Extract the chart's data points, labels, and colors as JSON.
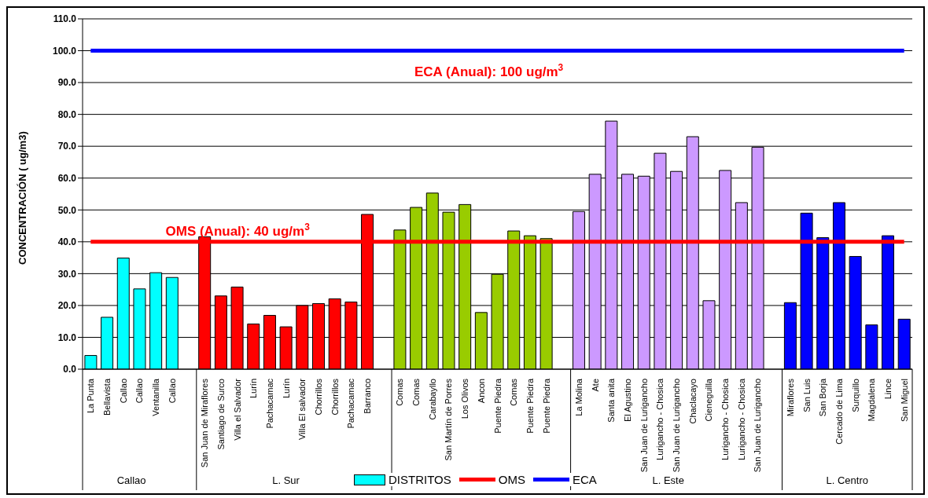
{
  "chart_data": {
    "type": "bar",
    "ylabel": "CONCENTRACIÓN ( ug/m3)",
    "categories": [
      "La Punta",
      "Bellavista",
      "Callao",
      "Callao",
      "Ventanilla",
      "Callao",
      null,
      "San Juan de Miraflores",
      "Santiago de Surco",
      "Villa el Salvador",
      "Lurín",
      "Pachacamac",
      "Lurín",
      "Villa El salvador",
      "Chorrillos",
      "Chorrillos",
      "Pachacamac",
      "Barranco",
      null,
      "Comas",
      "Comas",
      "Carabayllo",
      "San Martín de Porres",
      "Los Olivos",
      "Ancon",
      "Puente Piedra",
      "Comas",
      "Puente Piedra",
      "Puente Piedra",
      null,
      "La Molina",
      "Ate",
      "Santa anita",
      "El Agustino",
      "San Juan de Lurigancho",
      "Lurigancho - Chosica",
      "San Juan de Lurigancho",
      "Chaclacayo",
      "Cieneguilla",
      "Lurigancho - Chosica",
      "Lurigancho - Chosica",
      "San Juan de Lurigancho",
      null,
      "Miraflores",
      "San Luis",
      "San Borja",
      "Cercado de Lima",
      "Surquillo",
      "Magdalena",
      "Lince",
      "San Miguel"
    ],
    "series": [
      {
        "name": "DISTRITOS",
        "color": "#00ffff",
        "colors": [
          "#00ffff",
          "#00ffff",
          "#00ffff",
          "#00ffff",
          "#00ffff",
          "#00ffff",
          null,
          "#ff0000",
          "#ff0000",
          "#ff0000",
          "#ff0000",
          "#ff0000",
          "#ff0000",
          "#ff0000",
          "#ff0000",
          "#ff0000",
          "#ff0000",
          "#ff0000",
          null,
          "#99cc00",
          "#99cc00",
          "#99cc00",
          "#99cc00",
          "#99cc00",
          "#99cc00",
          "#99cc00",
          "#99cc00",
          "#99cc00",
          "#99cc00",
          null,
          "#cc99ff",
          "#cc99ff",
          "#cc99ff",
          "#cc99ff",
          "#cc99ff",
          "#cc99ff",
          "#cc99ff",
          "#cc99ff",
          "#cc99ff",
          "#cc99ff",
          "#cc99ff",
          "#cc99ff",
          null,
          "#0000ff",
          "#0000ff",
          "#0000ff",
          "#0000ff",
          "#0000ff",
          "#0000ff",
          "#0000ff",
          "#0000ff"
        ],
        "values": [
          4.3,
          16.3,
          34.9,
          25.2,
          30.3,
          28.8,
          null,
          41.6,
          23.0,
          25.8,
          14.2,
          16.9,
          13.3,
          20.0,
          20.6,
          22.1,
          21.1,
          48.6,
          null,
          43.7,
          50.8,
          55.3,
          49.3,
          51.7,
          17.8,
          29.8,
          43.4,
          41.9,
          41.0,
          null,
          49.5,
          61.2,
          77.9,
          61.2,
          60.6,
          67.8,
          62.1,
          73.0,
          21.5,
          62.4,
          52.3,
          69.7,
          null,
          20.9,
          49.0,
          41.3,
          52.3,
          35.4,
          13.9,
          41.9,
          15.7
        ]
      },
      {
        "name": "OMS",
        "type": "line",
        "color": "#ff0000",
        "values": [
          40,
          40,
          40,
          40,
          40,
          40,
          40,
          40,
          40,
          40,
          40,
          40,
          40,
          40,
          40,
          40,
          40,
          40,
          40,
          40,
          40,
          40,
          40,
          40,
          40,
          40,
          40,
          40,
          40,
          40,
          40,
          40,
          40,
          40,
          40,
          40,
          40,
          40,
          40,
          40,
          40,
          40,
          40,
          40,
          40,
          40,
          40,
          40,
          40,
          40,
          40
        ]
      },
      {
        "name": "ECA",
        "type": "line",
        "color": "#0000ff",
        "values": [
          100,
          100,
          100,
          100,
          100,
          100,
          100,
          100,
          100,
          100,
          100,
          100,
          100,
          100,
          100,
          100,
          100,
          100,
          100,
          100,
          100,
          100,
          100,
          100,
          100,
          100,
          100,
          100,
          100,
          100,
          100,
          100,
          100,
          100,
          100,
          100,
          100,
          100,
          100,
          100,
          100,
          100,
          100,
          100,
          100,
          100,
          100,
          100,
          100,
          100,
          100
        ]
      }
    ],
    "annotations": [
      "OMS (Anual): 40 ug/m$^{3}$",
      "ECA (Anual): 100 ug/m$^{3}$",
      "Callao",
      "L. Sur",
      "L. Este",
      "L. Centro"
    ],
    "ylim": [
      0,
      110
    ],
    "yticks": [
      {
        "value": 0,
        "label": "0.0"
      },
      {
        "value": 10,
        "label": "10.0"
      },
      {
        "value": 20,
        "label": "20.0"
      },
      {
        "value": 30,
        "label": "30.0"
      },
      {
        "value": 40,
        "label": "40.0"
      },
      {
        "value": 50,
        "label": "50.0"
      },
      {
        "value": 60,
        "label": "60.0"
      },
      {
        "value": 70,
        "label": "70.0"
      },
      {
        "value": 80,
        "label": "80.0"
      },
      {
        "value": 90,
        "label": "90.0"
      },
      {
        "value": 100,
        "label": "100.0"
      },
      {
        "value": 110,
        "label": "110.0"
      }
    ],
    "grid": "y",
    "legend": "bottom",
    "marker": "none"
  }
}
